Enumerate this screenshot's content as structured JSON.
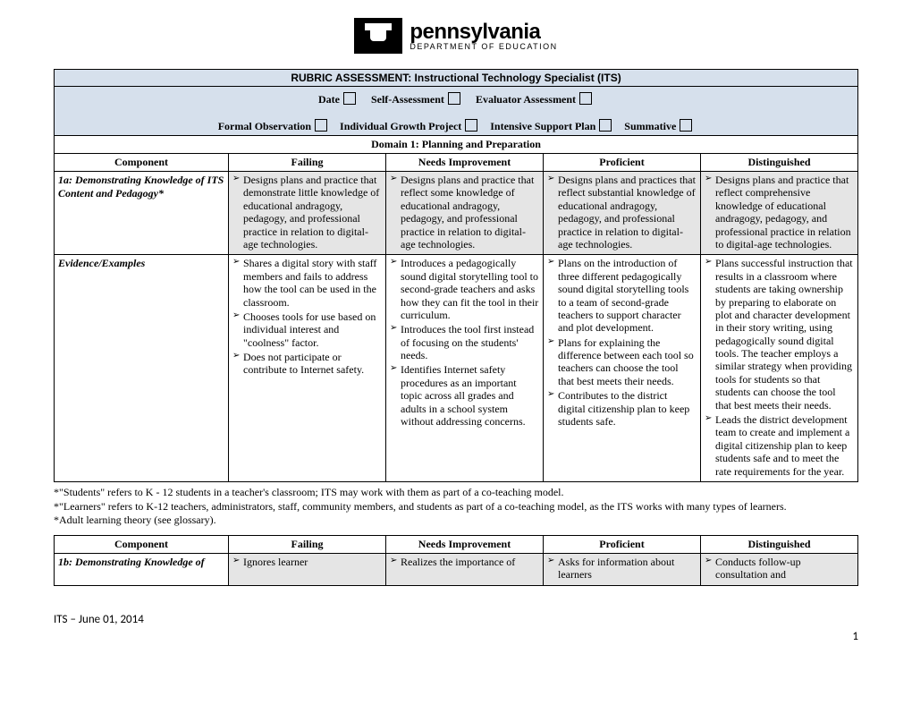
{
  "logo": {
    "main": "pennsylvania",
    "sub": "DEPARTMENT OF EDUCATION"
  },
  "title": "RUBRIC ASSESSMENT: Instructional Technology Specialist (ITS)",
  "checks_line1": [
    {
      "label": "Date"
    },
    {
      "label": "Self-Assessment"
    },
    {
      "label": "Evaluator Assessment"
    }
  ],
  "checks_line2": [
    {
      "label": "Formal Observation"
    },
    {
      "label": "Individual Growth Project"
    },
    {
      "label": "Intensive Support Plan"
    },
    {
      "label": "Summative"
    }
  ],
  "domain": "Domain 1: Planning and Preparation",
  "headers": {
    "component": "Component",
    "failing": "Failing",
    "needs": "Needs Improvement",
    "proficient": "Proficient",
    "distinguished": "Distinguished"
  },
  "row1a": {
    "component": "1a: Demonstrating Knowledge of ITS Content and Pedagogy*",
    "failing": "Designs plans and practice that demonstrate little knowledge of educational andragogy, pedagogy, and professional practice in relation to digital-age technologies.",
    "needs": "Designs plans and practice that reflect some knowledge of educational andragogy, pedagogy, and professional practice in relation to digital-age technologies.",
    "proficient": "Designs plans and practices that reflect substantial knowledge of educational andragogy, pedagogy, and professional practice in relation to digital-age technologies.",
    "distinguished": "Designs plans and practice that reflect comprehensive knowledge of educational andragogy, pedagogy, and professional practice in relation to digital-age technologies."
  },
  "evidence_label": "Evidence/Examples",
  "ev": {
    "failing": [
      "Shares a digital story with staff members and fails to address how the tool can be used in the classroom.",
      "Chooses tools for use based on individual interest and \"coolness\" factor.",
      "Does not participate or contribute to Internet safety."
    ],
    "needs": [
      "Introduces a pedagogically sound digital storytelling tool to second-grade teachers and asks how they can fit the tool in their curriculum.",
      "Introduces the tool first instead of focusing on the students' needs.",
      "Identifies Internet safety procedures as an important topic across all grades and adults in a school system without addressing concerns."
    ],
    "proficient": [
      "Plans on the introduction of three different pedagogically sound digital storytelling tools to a team of second-grade teachers to support character and plot development.",
      "Plans for explaining the difference between each tool so teachers can choose the tool that best meets their needs.",
      "Contributes to the district digital citizenship plan to keep students safe."
    ],
    "distinguished": [
      "Plans successful instruction that results in a classroom where students are taking ownership by preparing to elaborate on plot and character development in their story writing, using pedagogically sound digital tools. The teacher employs a similar strategy when providing tools for students so that students can choose the tool that best meets their needs.",
      "Leads the district development team to create and implement a digital citizenship plan to keep students safe and to meet the rate requirements for the year."
    ]
  },
  "footnotes": [
    "*\"Students\" refers to K - 12 students in a teacher's classroom; ITS may work with them as part of a co-teaching model.",
    "*\"Learners\" refers to K-12 teachers, administrators, staff, community members, and students as part of a co-teaching model, as the ITS works with many types of learners.",
    "*Adult learning theory (see glossary)."
  ],
  "row1b": {
    "component": "1b: Demonstrating Knowledge of",
    "failing": "Ignores learner",
    "needs": "Realizes the importance of",
    "proficient": "Asks for information about learners",
    "distinguished": "Conducts follow-up consultation and"
  },
  "footer": {
    "left": "ITS  – June 01, 2014",
    "page": "1"
  }
}
